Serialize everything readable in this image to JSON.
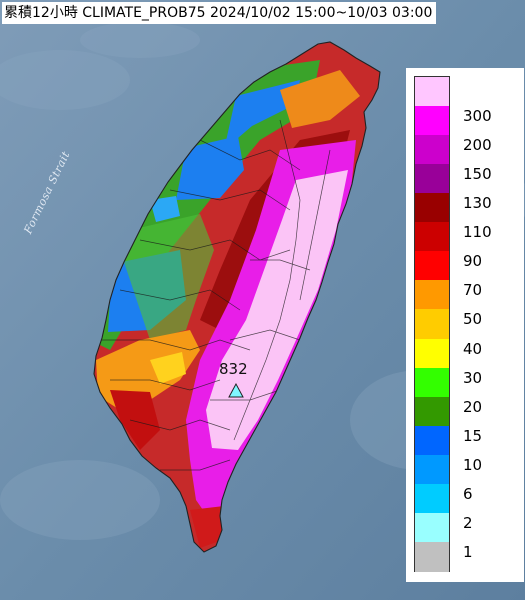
{
  "title": "累積12小時 CLIMATE_PROB75 2024/10/02 15:00~10/03 03:00",
  "map": {
    "sea_label": "Formosa Strait",
    "max_value_label": "832",
    "max_marker_color": "#7ff6ff"
  },
  "legend": {
    "items": [
      {
        "label": "300",
        "color": "#ffc6ff"
      },
      {
        "label": "200",
        "color": "#ff00ff"
      },
      {
        "label": "150",
        "color": "#cc00cc"
      },
      {
        "label": "130",
        "color": "#990099"
      },
      {
        "label": "110",
        "color": "#990000"
      },
      {
        "label": "90",
        "color": "#cc0000"
      },
      {
        "label": "70",
        "color": "#ff0000"
      },
      {
        "label": "50",
        "color": "#ff9900"
      },
      {
        "label": "40",
        "color": "#ffcc00"
      },
      {
        "label": "30",
        "color": "#ffff00"
      },
      {
        "label": "20",
        "color": "#33ff00"
      },
      {
        "label": "15",
        "color": "#339900"
      },
      {
        "label": "10",
        "color": "#0066ff"
      },
      {
        "label": "6",
        "color": "#0099ff"
      },
      {
        "label": "2",
        "color": "#00ccff"
      },
      {
        "label": "1",
        "color": "#99ffff"
      },
      {
        "label": "",
        "color": "#c0c0c0"
      }
    ]
  }
}
